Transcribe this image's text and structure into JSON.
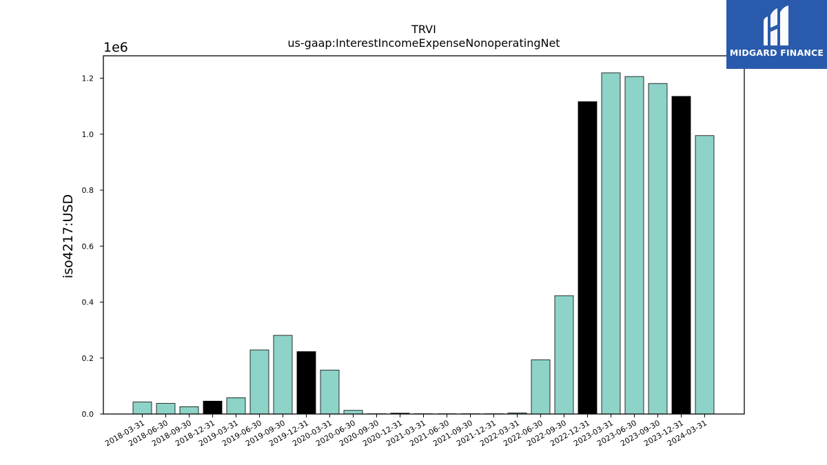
{
  "brand": {
    "name": "MIDGARD FINANCE",
    "logo_icon": "midgard-m-icon",
    "background_color": "#2a5aab"
  },
  "chart_data": {
    "type": "bar",
    "title": "TRVI",
    "subtitle": "us-gaap:InterestIncomeExpenseNonoperatingNet",
    "xlabel": "",
    "ylabel": "iso4217:USD",
    "y_offset_label": "1e6",
    "ylim": [
      0,
      1.28
    ],
    "y_ticks": [
      "0.0",
      "0.2",
      "0.4",
      "0.6",
      "0.8",
      "1.0",
      "1.2"
    ],
    "grid": false,
    "colors": {
      "quarter": "#8dd3c7",
      "year_end": "#000000"
    },
    "categories": [
      "2018-03-31",
      "2018-06-30",
      "2018-09-30",
      "2018-12-31",
      "2019-03-31",
      "2019-06-30",
      "2019-09-30",
      "2019-12-31",
      "2020-03-31",
      "2020-06-30",
      "2020-09-30",
      "2020-12-31",
      "2021-03-31",
      "2021-06-30",
      "2021-09-30",
      "2021-12-31",
      "2022-03-31",
      "2022-06-30",
      "2022-09-30",
      "2022-12-31",
      "2023-03-31",
      "2023-06-30",
      "2023-09-30",
      "2023-12-31",
      "2024-03-31"
    ],
    "values": [
      0.043,
      0.038,
      0.026,
      0.046,
      0.058,
      0.229,
      0.281,
      0.223,
      0.157,
      0.013,
      0.001,
      0.003,
      0.001,
      0.001,
      0.001,
      0.001,
      0.004,
      0.194,
      0.423,
      1.116,
      1.219,
      1.206,
      1.181,
      1.135,
      0.995
    ],
    "year_end": [
      false,
      false,
      false,
      true,
      false,
      false,
      false,
      true,
      false,
      false,
      false,
      true,
      false,
      false,
      false,
      true,
      false,
      false,
      false,
      true,
      false,
      false,
      false,
      true,
      false
    ]
  }
}
